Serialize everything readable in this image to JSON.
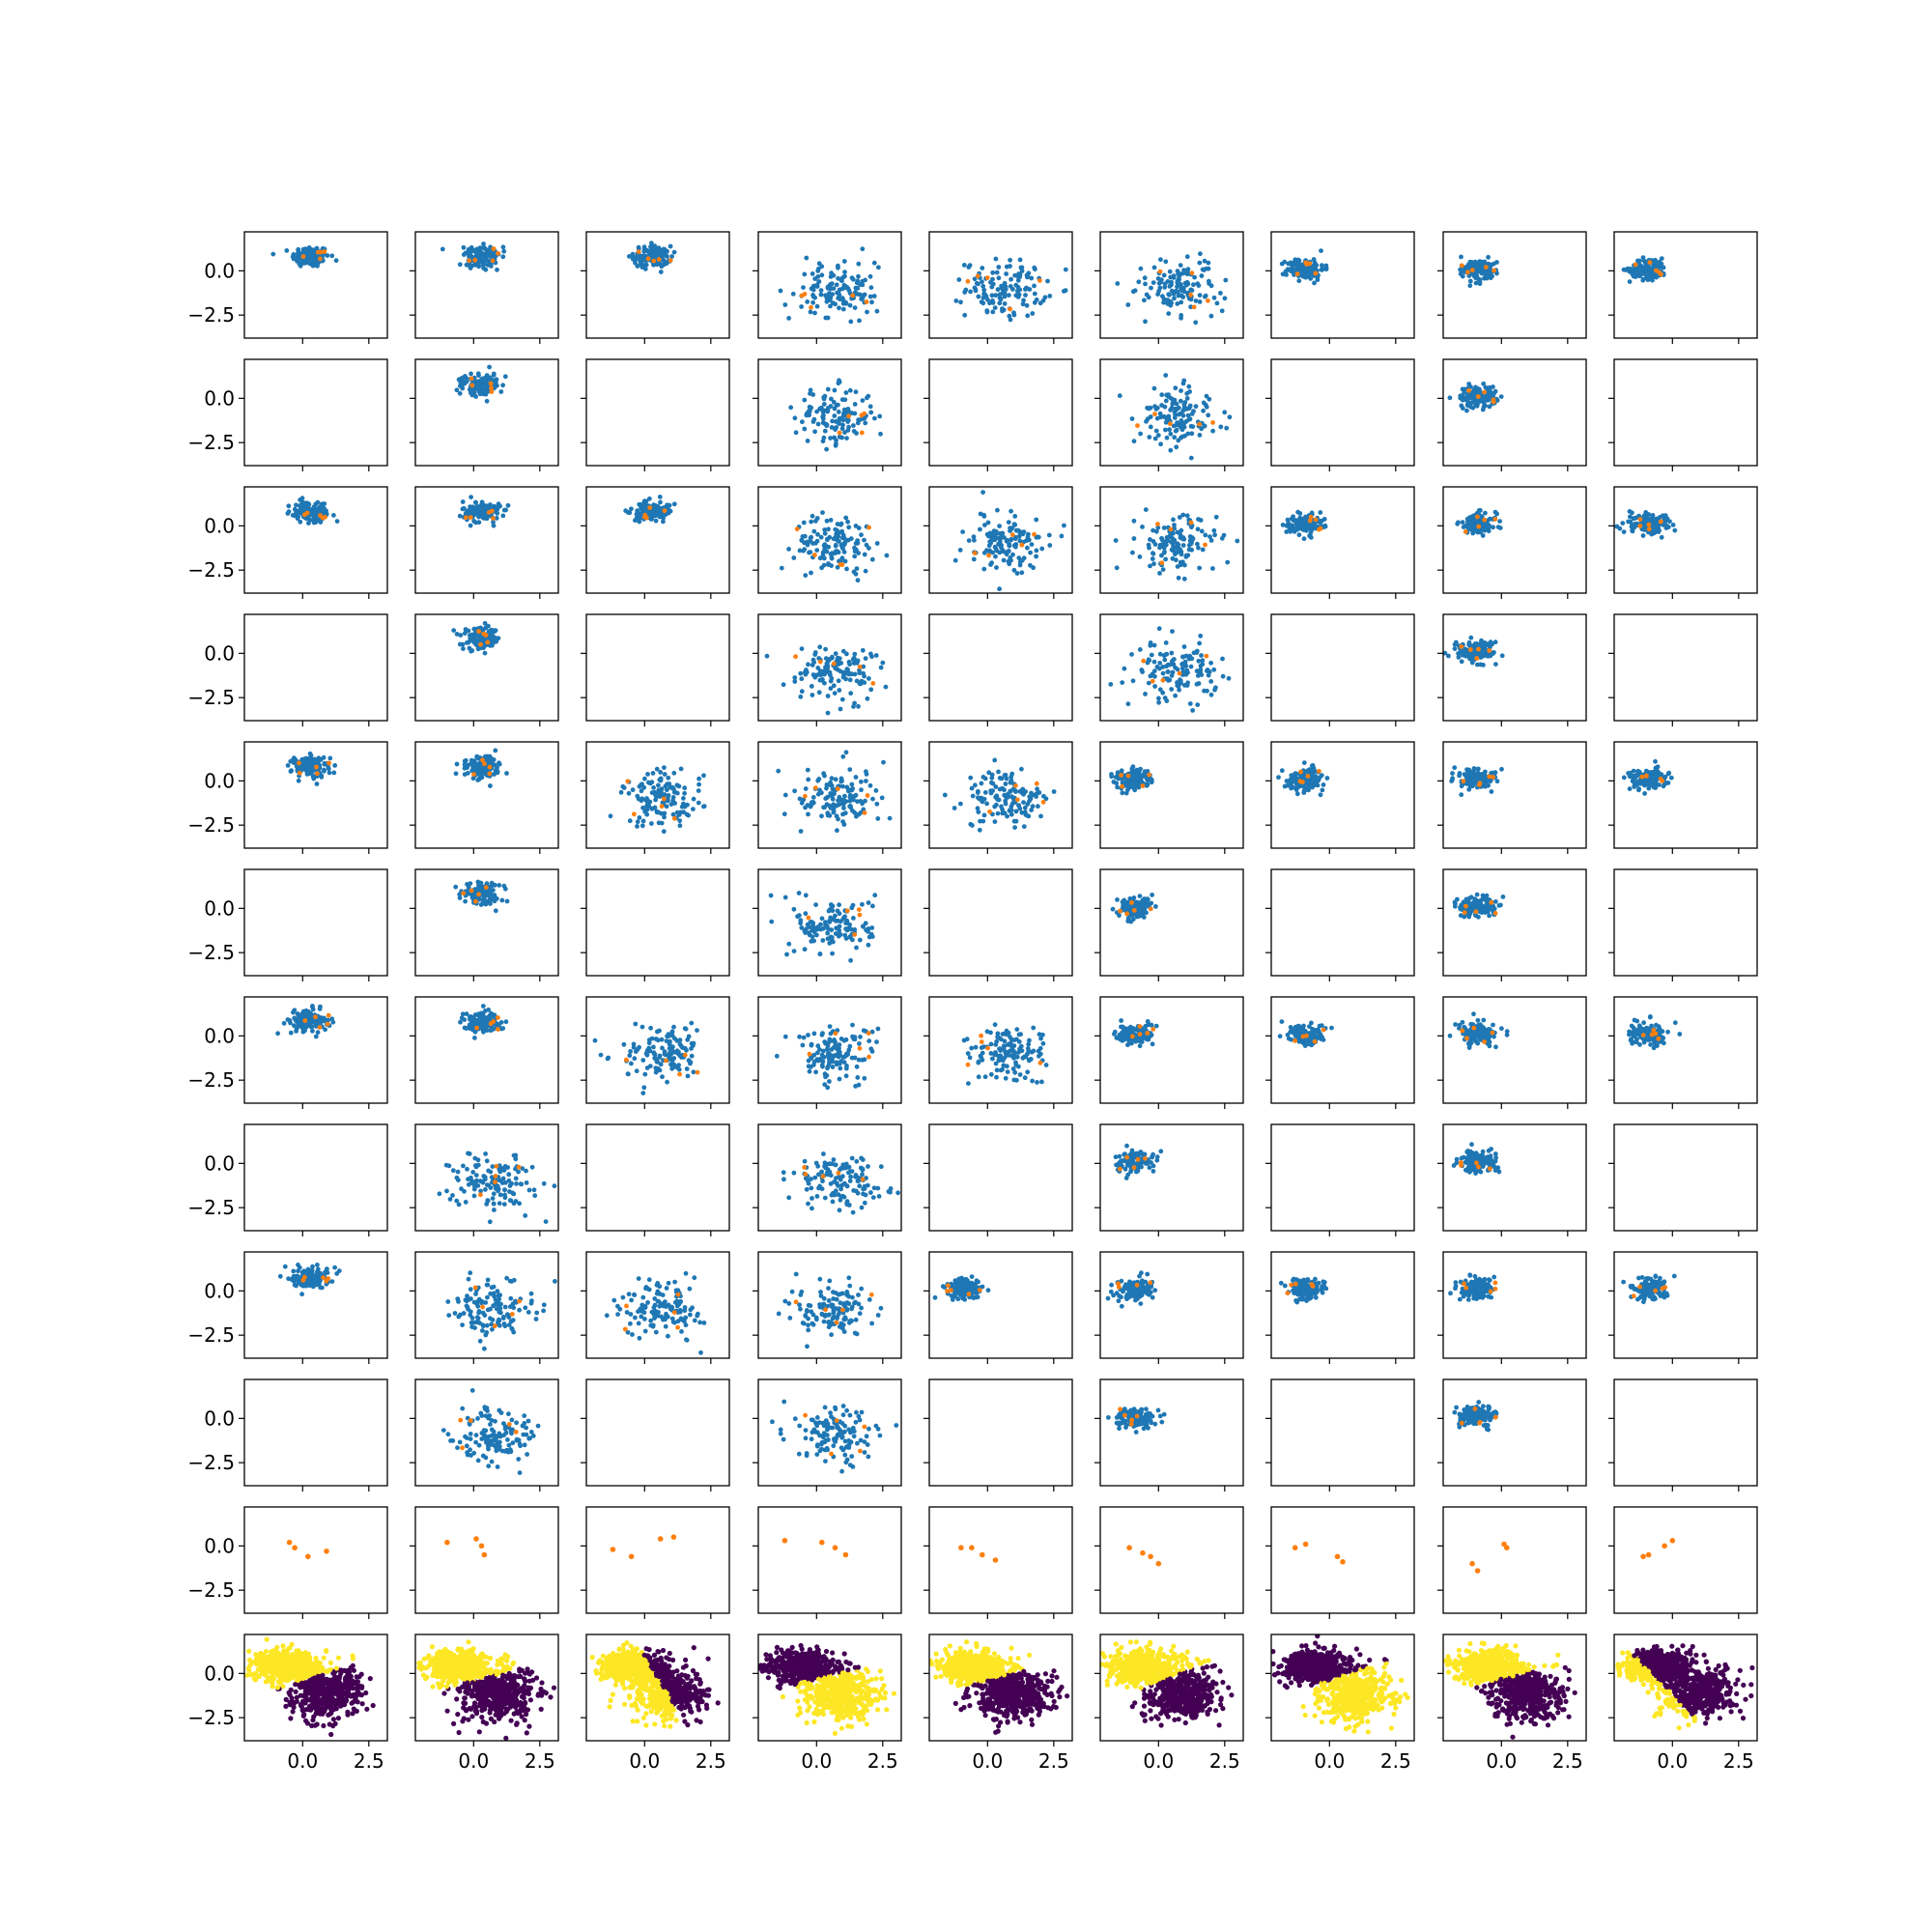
{
  "figure": {
    "rows": 12,
    "cols": 9
  },
  "colors": {
    "blue": "#1f77b4",
    "orange": "#ff7f0e",
    "yellow": "#fde725",
    "purple": "#440154"
  },
  "chart_data": {
    "type": "scatter",
    "layout": "grid of 12 rows x 9 columns, shared axes",
    "xlim": [
      -2.2,
      3.2
    ],
    "ylim": [
      -3.8,
      2.2
    ],
    "x_ticks": [
      0.0,
      2.5
    ],
    "y_ticks": [
      0.0,
      -2.5
    ],
    "x_tick_labels": [
      "0.0",
      "2.5"
    ],
    "y_tick_labels": [
      "0.0",
      "−2.5"
    ],
    "grid": false,
    "legend": "none",
    "empty_panels": [
      [
        1,
        0
      ],
      [
        1,
        2
      ],
      [
        1,
        4
      ],
      [
        1,
        6
      ],
      [
        1,
        8
      ],
      [
        3,
        0
      ],
      [
        3,
        2
      ],
      [
        3,
        4
      ],
      [
        3,
        6
      ],
      [
        3,
        8
      ],
      [
        5,
        0
      ],
      [
        5,
        2
      ],
      [
        5,
        4
      ],
      [
        5,
        6
      ],
      [
        5,
        8
      ],
      [
        7,
        0
      ],
      [
        7,
        2
      ],
      [
        7,
        4
      ],
      [
        7,
        6
      ],
      [
        7,
        8
      ],
      [
        9,
        0
      ],
      [
        9,
        2
      ],
      [
        9,
        4
      ],
      [
        9,
        6
      ],
      [
        9,
        8
      ]
    ],
    "cluster_types": {
      "A": {
        "center": [
          0.3,
          0.8
        ],
        "spread": [
          0.35,
          0.3
        ],
        "n": 130
      },
      "B": {
        "center": [
          0.7,
          -1.0
        ],
        "spread": [
          0.75,
          0.8
        ],
        "n": 130
      },
      "C": {
        "center": [
          -0.9,
          0.1
        ],
        "spread": [
          0.35,
          0.3
        ],
        "n": 130
      }
    },
    "cluster_grid": [
      [
        "A",
        "A",
        "A",
        "B",
        "B",
        "B",
        "C",
        "C",
        "C"
      ],
      [
        "",
        "A",
        "",
        "B",
        "",
        "B",
        "",
        "C",
        ""
      ],
      [
        "A",
        "A",
        "A",
        "B",
        "B",
        "B",
        "C",
        "C",
        "C"
      ],
      [
        "",
        "A",
        "",
        "B",
        "",
        "B",
        "",
        "C",
        ""
      ],
      [
        "A",
        "A",
        "B",
        "B",
        "B",
        "C",
        "C",
        "C",
        "C"
      ],
      [
        "",
        "A",
        "",
        "B",
        "",
        "C",
        "",
        "C",
        ""
      ],
      [
        "A",
        "A",
        "B",
        "B",
        "B",
        "C",
        "C",
        "C",
        "C"
      ],
      [
        "",
        "B",
        "",
        "B",
        "",
        "C",
        "",
        "C",
        ""
      ],
      [
        "A",
        "B",
        "B",
        "B",
        "C",
        "C",
        "C",
        "C",
        "C"
      ],
      [
        "",
        "B",
        "",
        "B",
        "",
        "C",
        "",
        "C",
        ""
      ],
      [
        "",
        "",
        "",
        "",
        "",
        "",
        "",
        "",
        ""
      ],
      [
        "",
        "",
        "",
        "",
        "",
        "",
        "",
        "",
        ""
      ]
    ],
    "orange_row_points": [
      [
        [
          -0.5,
          0.2
        ],
        [
          -0.3,
          -0.1
        ],
        [
          0.2,
          -0.6
        ],
        [
          0.9,
          -0.3
        ]
      ],
      [
        [
          -1.0,
          0.2
        ],
        [
          0.1,
          0.4
        ],
        [
          0.3,
          0.0
        ],
        [
          0.4,
          -0.5
        ]
      ],
      [
        [
          -1.2,
          -0.2
        ],
        [
          -0.5,
          -0.6
        ],
        [
          0.6,
          0.4
        ],
        [
          1.1,
          0.5
        ]
      ],
      [
        [
          -1.2,
          0.3
        ],
        [
          0.2,
          0.2
        ],
        [
          0.7,
          -0.1
        ],
        [
          1.1,
          -0.5
        ]
      ],
      [
        [
          -1.0,
          -0.1
        ],
        [
          -0.6,
          -0.1
        ],
        [
          -0.2,
          -0.5
        ],
        [
          0.3,
          -0.8
        ]
      ],
      [
        [
          -1.1,
          -0.1
        ],
        [
          -0.6,
          -0.4
        ],
        [
          -0.3,
          -0.6
        ],
        [
          0.0,
          -1.0
        ]
      ],
      [
        [
          -1.3,
          -0.1
        ],
        [
          -0.9,
          0.1
        ],
        [
          0.3,
          -0.6
        ],
        [
          0.5,
          -0.9
        ]
      ],
      [
        [
          -1.1,
          -1.0
        ],
        [
          -0.9,
          -1.4
        ],
        [
          0.1,
          0.1
        ],
        [
          0.2,
          -0.1
        ]
      ],
      [
        [
          -1.1,
          -0.6
        ],
        [
          -0.9,
          -0.5
        ],
        [
          -0.3,
          0.0
        ],
        [
          0.0,
          0.3
        ]
      ]
    ],
    "bottom_row": {
      "colors": [
        "yellow",
        "purple"
      ],
      "boundaries": [
        {
          "normal": [
            -1.0,
            2.0
          ],
          "offset": -0.8,
          "pos": "yellow"
        },
        {
          "normal": [
            -0.8,
            2.0
          ],
          "offset": -0.8,
          "pos": "yellow"
        },
        {
          "normal": [
            -2.5,
            -1.0
          ],
          "offset": -1.0,
          "pos": "yellow"
        },
        {
          "normal": [
            -0.8,
            2.0
          ],
          "offset": -0.6,
          "pos": "purple"
        },
        {
          "normal": [
            -0.8,
            2.0
          ],
          "offset": -0.8,
          "pos": "yellow"
        },
        {
          "normal": [
            -1.2,
            2.0
          ],
          "offset": -0.9,
          "pos": "yellow"
        },
        {
          "normal": [
            -1.0,
            2.0
          ],
          "offset": -0.7,
          "pos": "purple"
        },
        {
          "normal": [
            -0.9,
            2.5
          ],
          "offset": -0.8,
          "pos": "yellow"
        },
        {
          "normal": [
            -1.5,
            -1.0
          ],
          "offset": 1.2,
          "pos": "yellow"
        }
      ]
    }
  }
}
